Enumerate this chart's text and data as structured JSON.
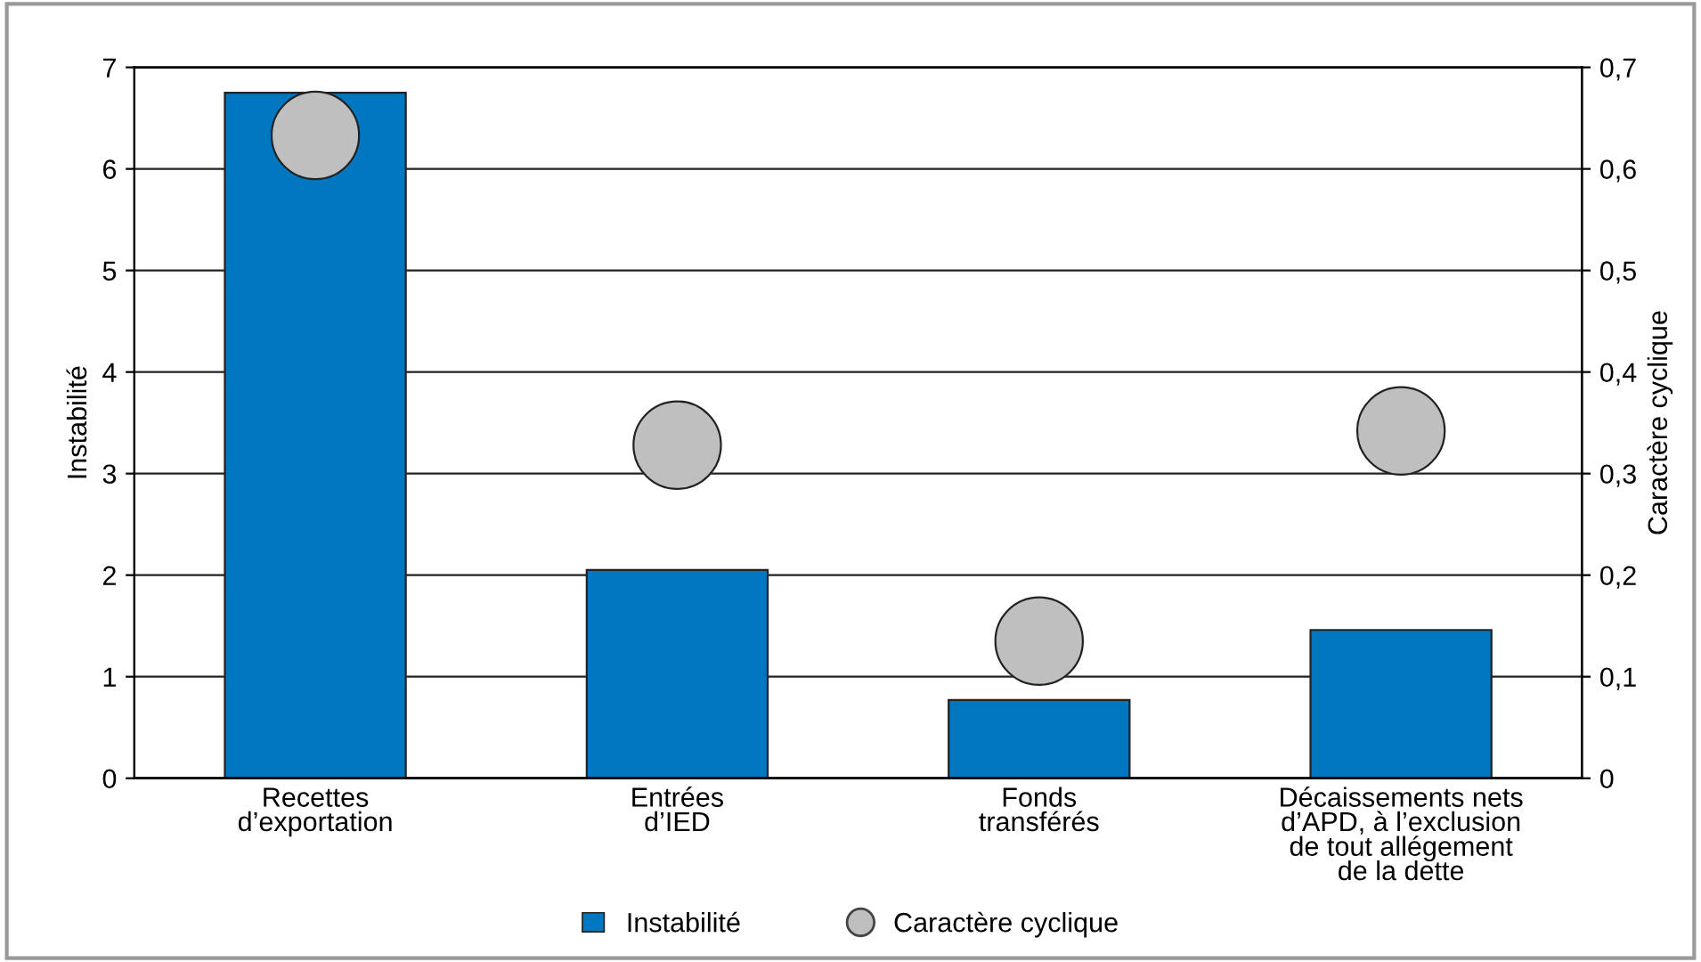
{
  "chart_data": {
    "type": "bar",
    "ylabel": "Instabilité",
    "y2label": "Caractère cyclique",
    "categories": [
      "Recettes\nd’exportation",
      "Entrées\nd’IED",
      "Fonds\ntransférés",
      "Décaissements nets\nd’APD, à l’exclusion\nde tout allégement\nde la dette"
    ],
    "series": [
      {
        "name": "Instabilité",
        "color": "#0077c0",
        "values": [
          6.75,
          2.05,
          0.77,
          1.46
        ]
      },
      {
        "name": "Caractère cyclique",
        "type": "scatter",
        "axis": "y2",
        "color": "#bfbfbf",
        "marker": "circle",
        "values": [
          0.633,
          0.328,
          0.135,
          0.342
        ]
      }
    ],
    "ylim": [
      0,
      7
    ],
    "yticks": [
      0,
      1,
      2,
      3,
      4,
      5,
      6,
      7
    ],
    "y2lim": [
      0,
      0.7
    ],
    "y2ticks": [
      {
        "value": 0,
        "label": "0"
      },
      {
        "value": 0.1,
        "label": "0,1"
      },
      {
        "value": 0.2,
        "label": "0,2"
      },
      {
        "value": 0.3,
        "label": "0,3"
      },
      {
        "value": 0.4,
        "label": "0,4"
      },
      {
        "value": 0.5,
        "label": "0,5"
      },
      {
        "value": 0.6,
        "label": "0,6"
      },
      {
        "value": 0.7,
        "label": "0,7"
      }
    ],
    "grid": "y",
    "legend": "bottom"
  }
}
